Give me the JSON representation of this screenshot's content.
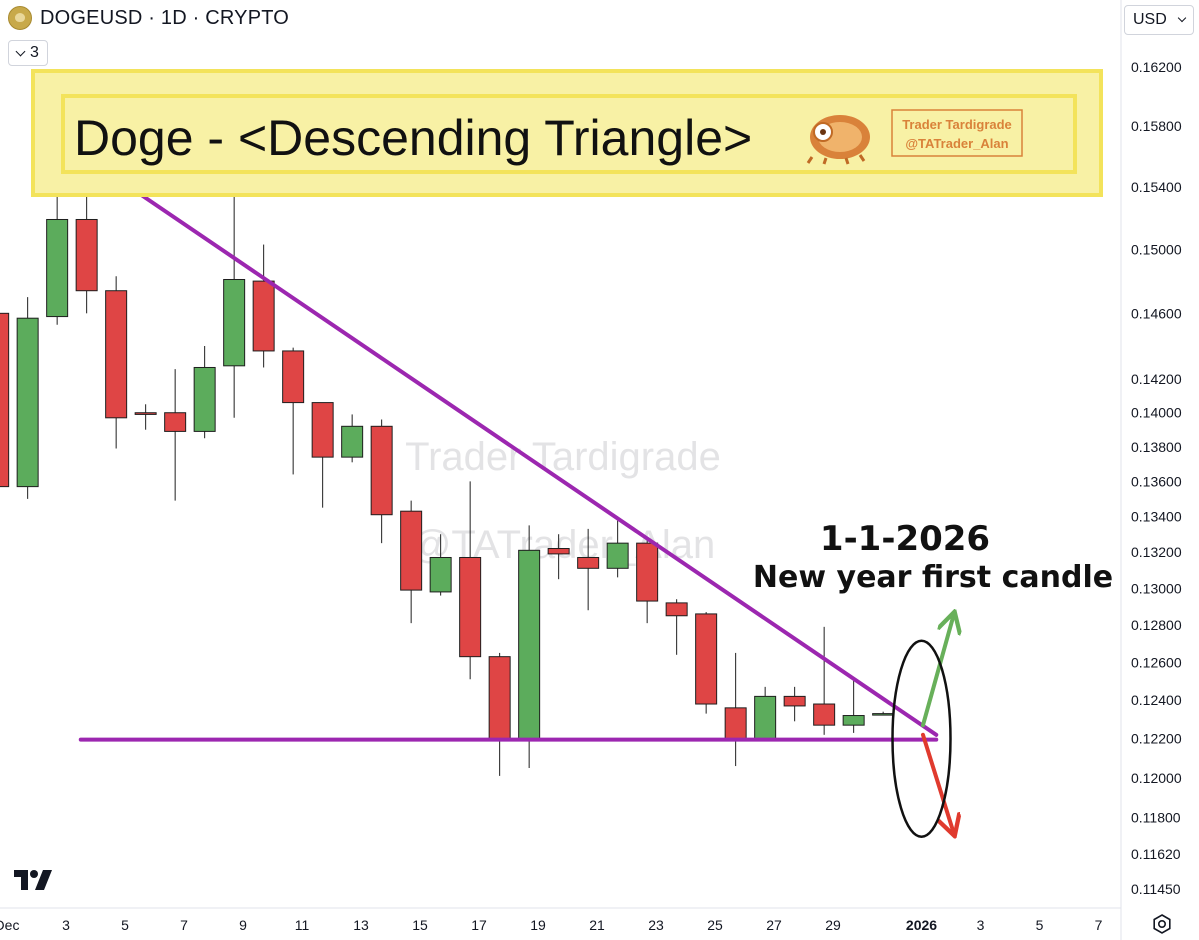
{
  "header": {
    "symbol": "DOGEUSD · 1D · CRYPTO",
    "legend_count": "3",
    "currency": "USD"
  },
  "colors": {
    "up": "#5cac5c",
    "down": "#df4545",
    "trendline": "#9c27b0",
    "banner_fill": "#f8f1a5",
    "banner_border": "#f3e35b"
  },
  "banner": {
    "title": "Doge - <Descending Triangle>",
    "badge_line1": "Trader Tardigrade",
    "badge_line2": "@TATrader_Alan",
    "icon": "tardigrade-icon"
  },
  "watermark": {
    "line1": "Trader Tardigrade",
    "line2": "@TATrader_Alan"
  },
  "annotation": {
    "line1": "1-1-2026",
    "line2": "New year first candle"
  },
  "chart_data": {
    "type": "candlestick",
    "price_scale": "log",
    "y_ticks": [
      "0.16200",
      "0.15800",
      "0.15400",
      "0.15000",
      "0.14600",
      "0.14200",
      "0.14000",
      "0.13800",
      "0.13600",
      "0.13400",
      "0.13200",
      "0.13000",
      "0.12800",
      "0.12600",
      "0.12400",
      "0.12200",
      "0.12000",
      "0.11800",
      "0.11620",
      "0.11450"
    ],
    "x_ticks": [
      {
        "day": 1,
        "label": "Dec"
      },
      {
        "day": 3,
        "label": "3"
      },
      {
        "day": 5,
        "label": "5"
      },
      {
        "day": 7,
        "label": "7"
      },
      {
        "day": 9,
        "label": "9"
      },
      {
        "day": 11,
        "label": "11"
      },
      {
        "day": 13,
        "label": "13"
      },
      {
        "day": 15,
        "label": "15"
      },
      {
        "day": 17,
        "label": "17"
      },
      {
        "day": 19,
        "label": "19"
      },
      {
        "day": 21,
        "label": "21"
      },
      {
        "day": 23,
        "label": "23"
      },
      {
        "day": 25,
        "label": "25"
      },
      {
        "day": 27,
        "label": "27"
      },
      {
        "day": 29,
        "label": "29"
      },
      {
        "day": 32,
        "label": "2026",
        "bold": true
      },
      {
        "day": 34,
        "label": "3"
      },
      {
        "day": 36,
        "label": "5"
      },
      {
        "day": 38,
        "label": "7"
      }
    ],
    "candles": [
      {
        "day": 0.7,
        "o": 0.146,
        "h": 0.1464,
        "l": 0.1326,
        "c": 0.1357
      },
      {
        "day": 1.7,
        "o": 0.1357,
        "h": 0.147,
        "l": 0.135,
        "c": 0.1457
      },
      {
        "day": 2.7,
        "o": 0.1458,
        "h": 0.1543,
        "l": 0.1453,
        "c": 0.1519
      },
      {
        "day": 3.7,
        "o": 0.1519,
        "h": 0.154,
        "l": 0.146,
        "c": 0.1474
      },
      {
        "day": 4.7,
        "o": 0.1474,
        "h": 0.1483,
        "l": 0.1379,
        "c": 0.1397
      },
      {
        "day": 5.7,
        "o": 0.14,
        "h": 0.1405,
        "l": 0.139,
        "c": 0.1399
      },
      {
        "day": 6.7,
        "o": 0.14,
        "h": 0.1426,
        "l": 0.1349,
        "c": 0.1389
      },
      {
        "day": 7.7,
        "o": 0.1389,
        "h": 0.144,
        "l": 0.1385,
        "c": 0.1427
      },
      {
        "day": 8.7,
        "o": 0.1428,
        "h": 0.1537,
        "l": 0.1397,
        "c": 0.1481
      },
      {
        "day": 9.7,
        "o": 0.148,
        "h": 0.1503,
        "l": 0.1427,
        "c": 0.1437
      },
      {
        "day": 10.7,
        "o": 0.1437,
        "h": 0.1439,
        "l": 0.1364,
        "c": 0.1406
      },
      {
        "day": 11.7,
        "o": 0.1406,
        "h": 0.1406,
        "l": 0.1345,
        "c": 0.1374
      },
      {
        "day": 12.7,
        "o": 0.1374,
        "h": 0.1399,
        "l": 0.1371,
        "c": 0.1392
      },
      {
        "day": 13.7,
        "o": 0.1392,
        "h": 0.1396,
        "l": 0.1325,
        "c": 0.1341
      },
      {
        "day": 14.7,
        "o": 0.1343,
        "h": 0.1349,
        "l": 0.1281,
        "c": 0.1299
      },
      {
        "day": 15.7,
        "o": 0.1298,
        "h": 0.133,
        "l": 0.1296,
        "c": 0.1317
      },
      {
        "day": 16.7,
        "o": 0.1317,
        "h": 0.136,
        "l": 0.1251,
        "c": 0.1263
      },
      {
        "day": 17.7,
        "o": 0.1263,
        "h": 0.1265,
        "l": 0.1201,
        "c": 0.122
      },
      {
        "day": 18.7,
        "o": 0.122,
        "h": 0.1335,
        "l": 0.1205,
        "c": 0.1321
      },
      {
        "day": 19.7,
        "o": 0.1322,
        "h": 0.133,
        "l": 0.1305,
        "c": 0.1319
      },
      {
        "day": 20.7,
        "o": 0.1317,
        "h": 0.1333,
        "l": 0.1288,
        "c": 0.1311
      },
      {
        "day": 21.7,
        "o": 0.1311,
        "h": 0.1339,
        "l": 0.1306,
        "c": 0.1325
      },
      {
        "day": 22.7,
        "o": 0.1325,
        "h": 0.1327,
        "l": 0.1281,
        "c": 0.1293
      },
      {
        "day": 23.7,
        "o": 0.1292,
        "h": 0.1294,
        "l": 0.1264,
        "c": 0.1285
      },
      {
        "day": 24.7,
        "o": 0.1286,
        "h": 0.1287,
        "l": 0.1233,
        "c": 0.1238
      },
      {
        "day": 25.7,
        "o": 0.1236,
        "h": 0.1265,
        "l": 0.1206,
        "c": 0.122
      },
      {
        "day": 26.7,
        "o": 0.122,
        "h": 0.1247,
        "l": 0.1219,
        "c": 0.1242
      },
      {
        "day": 27.7,
        "o": 0.1242,
        "h": 0.1247,
        "l": 0.1229,
        "c": 0.1237
      },
      {
        "day": 28.7,
        "o": 0.1238,
        "h": 0.1279,
        "l": 0.1222,
        "c": 0.1227
      },
      {
        "day": 29.7,
        "o": 0.1227,
        "h": 0.1252,
        "l": 0.1223,
        "c": 0.1232
      },
      {
        "day": 30.7,
        "o": 0.1233,
        "h": 0.1234,
        "l": 0.1233,
        "c": 0.1233
      }
    ],
    "drawings": {
      "resistance": {
        "from": {
          "day": 5.0,
          "price": 0.1542
        },
        "to": {
          "day": 32.5,
          "price": 0.1222
        }
      },
      "support": {
        "from": {
          "day": 3.5,
          "price": 0.12195
        },
        "to": {
          "day": 32.5,
          "price": 0.12195
        }
      },
      "up_arrow": {
        "from": {
          "day": 32.05,
          "price": 0.1227
        },
        "to": {
          "day": 33.1,
          "price": 0.1286
        }
      },
      "down_arrow": {
        "from": {
          "day": 32.05,
          "price": 0.1222
        },
        "to": {
          "day": 33.1,
          "price": 0.1172
        }
      },
      "ellipse": {
        "center_day": 32.0,
        "center_price": 0.122
      }
    }
  }
}
